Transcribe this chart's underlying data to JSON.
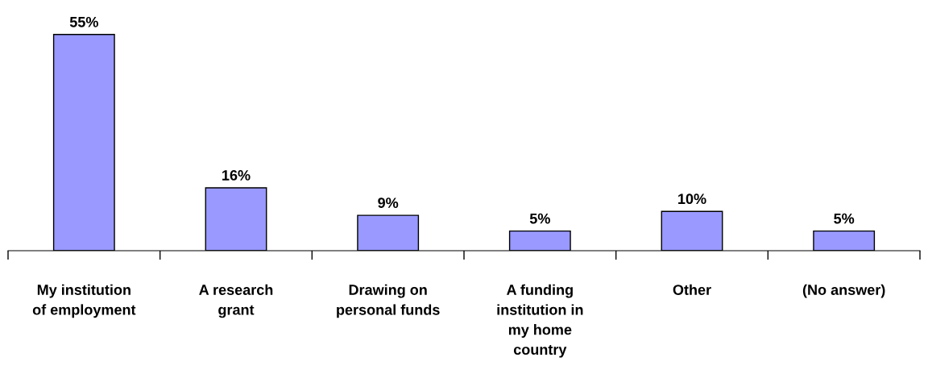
{
  "chart_data": {
    "type": "bar",
    "categories": [
      "My institution\nof employment",
      "A research\ngrant",
      "Drawing on\npersonal funds",
      "A funding\ninstitution in\nmy home\ncountry",
      "Other",
      "(No answer)"
    ],
    "values": [
      55,
      16,
      9,
      5,
      10,
      5
    ],
    "value_labels": [
      "55%",
      "16%",
      "9%",
      "5%",
      "10%",
      "5%"
    ],
    "color": "#9999ff",
    "grid": false,
    "legend": false
  }
}
